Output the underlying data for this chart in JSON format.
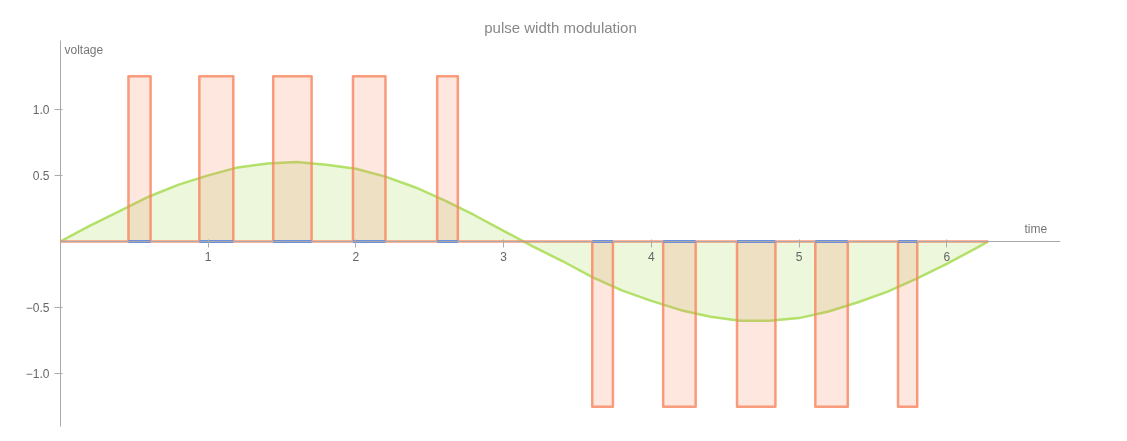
{
  "chart_data": {
    "type": "area",
    "title": "pulse width modulation",
    "xlabel": "time",
    "ylabel": "voltage",
    "xlim": [
      0,
      6.77
    ],
    "ylim": [
      -1.4,
      1.52
    ],
    "xticks": [
      1,
      2,
      3,
      4,
      5,
      6
    ],
    "yticks": [
      {
        "value": -1,
        "label": "−1.0"
      },
      {
        "value": -0.5,
        "label": "−0.5"
      },
      {
        "value": 0.5,
        "label": "0.5"
      },
      {
        "value": 1,
        "label": "1.0"
      }
    ],
    "grid": false,
    "series": [
      {
        "color": "#a3d94a",
        "x": [
          0,
          0.2,
          0.4,
          0.6,
          0.8,
          1.0,
          1.2,
          1.4,
          1.6,
          1.8,
          2.0,
          2.2,
          2.4,
          2.6,
          2.8,
          3.0,
          3.2,
          3.4,
          3.6,
          3.8,
          4.0,
          4.2,
          4.4,
          4.6,
          4.8,
          5.0,
          5.2,
          5.4,
          5.6,
          5.8,
          6.0,
          6.2,
          6.28
        ],
        "values": [
          0,
          0.12,
          0.23,
          0.34,
          0.43,
          0.5,
          0.56,
          0.59,
          0.6,
          0.58,
          0.55,
          0.49,
          0.41,
          0.31,
          0.2,
          0.08,
          -0.04,
          -0.15,
          -0.27,
          -0.37,
          -0.45,
          -0.52,
          -0.57,
          -0.6,
          -0.6,
          -0.58,
          -0.53,
          -0.46,
          -0.38,
          -0.28,
          -0.17,
          -0.05,
          0
        ]
      },
      {
        "color": "#f7855e",
        "x": [
          0,
          0.46,
          0.46,
          0.61,
          0.61,
          0.94,
          0.94,
          1.17,
          1.17,
          1.44,
          1.44,
          1.7,
          1.7,
          1.98,
          1.98,
          2.2,
          2.2,
          2.55,
          2.55,
          2.69,
          2.69,
          3.6,
          3.6,
          3.74,
          3.74,
          4.08,
          4.08,
          4.3,
          4.3,
          4.58,
          4.58,
          4.84,
          4.84,
          5.11,
          5.11,
          5.33,
          5.33,
          5.67,
          5.67,
          5.8,
          5.8,
          6.28
        ],
        "values": [
          0,
          0,
          1.25,
          1.25,
          0,
          0,
          1.25,
          1.25,
          0,
          0,
          1.25,
          1.25,
          0,
          0,
          1.25,
          1.25,
          0,
          0,
          1.25,
          1.25,
          0,
          0,
          -1.25,
          -1.25,
          0,
          0,
          -1.25,
          -1.25,
          0,
          0,
          -1.25,
          -1.25,
          0,
          0,
          -1.25,
          -1.25,
          0,
          0,
          -1.25,
          -1.25,
          0,
          0
        ]
      },
      {
        "type": "line",
        "color": "#6f8fd8",
        "x": [
          0.46,
          0.61,
          0.8,
          0.94,
          1.17,
          1.3,
          1.44,
          1.7,
          1.8,
          1.98,
          2.2,
          2.4,
          2.55,
          2.69,
          3.2,
          3.6,
          3.74,
          3.9,
          4.08,
          4.3,
          4.4,
          4.58,
          4.84,
          5.0,
          5.11,
          5.33,
          5.5,
          5.67,
          5.8
        ],
        "values": [
          0,
          0,
          null,
          0,
          0,
          null,
          0,
          0,
          null,
          0,
          0,
          null,
          0,
          0,
          null,
          0,
          0,
          null,
          0,
          0,
          null,
          0,
          0,
          null,
          0,
          0,
          null,
          0,
          0
        ]
      }
    ]
  }
}
